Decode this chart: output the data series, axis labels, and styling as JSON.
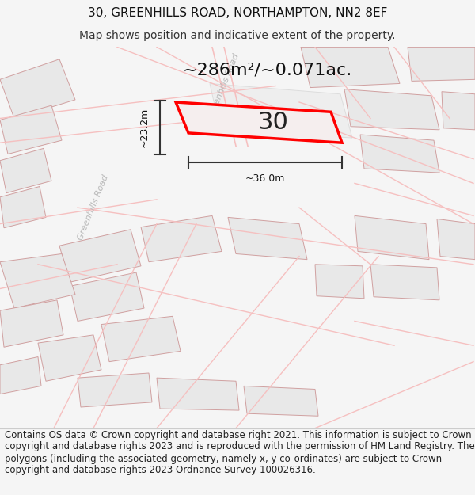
{
  "title_line1": "30, GREENHILLS ROAD, NORTHAMPTON, NN2 8EF",
  "title_line2": "Map shows position and indicative extent of the property.",
  "footer_text": "Contains OS data © Crown copyright and database right 2021. This information is subject to Crown copyright and database rights 2023 and is reproduced with the permission of HM Land Registry. The polygons (including the associated geometry, namely x, y co-ordinates) are subject to Crown copyright and database rights 2023 Ordnance Survey 100026316.",
  "area_label": "~286m²/~0.071ac.",
  "number_label": "30",
  "width_label": "~36.0m",
  "height_label": "~23.2m",
  "bg_color": "#f5f5f5",
  "map_bg": "#ffffff",
  "road_color_light": "#f5c0c0",
  "block_fill": "#e8e8e8",
  "block_edge": "#d0a0a0",
  "highlight_fill": "#f5eeee",
  "highlight_edge": "#ff0000",
  "highlight_lw": 2.5,
  "road_label_color": "#b8b8b8",
  "dim_color": "#333333",
  "title_fontsize": 11,
  "subtitle_fontsize": 10,
  "area_fontsize": 16,
  "number_fontsize": 22,
  "footer_fontsize": 8.5
}
